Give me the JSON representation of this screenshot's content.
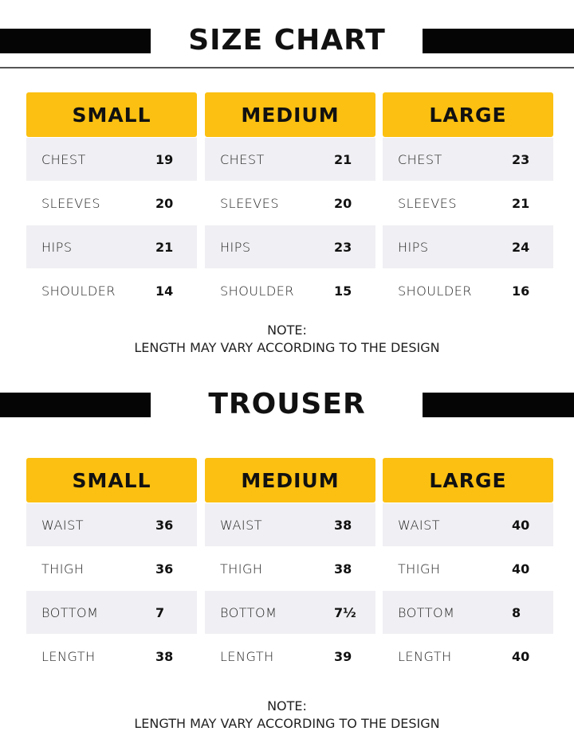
{
  "shirt": {
    "title": "SIZE CHART",
    "sizes": [
      {
        "name": "SMALL",
        "rows": [
          {
            "label": "CHEST",
            "value": "19"
          },
          {
            "label": "SLEEVES",
            "value": "20"
          },
          {
            "label": "HIPS",
            "value": "21"
          },
          {
            "label": "SHOULDER",
            "value": "14"
          }
        ]
      },
      {
        "name": "MEDIUM",
        "rows": [
          {
            "label": "CHEST",
            "value": "21"
          },
          {
            "label": "SLEEVES",
            "value": "20"
          },
          {
            "label": "HIPS",
            "value": "23"
          },
          {
            "label": "SHOULDER",
            "value": "15"
          }
        ]
      },
      {
        "name": "LARGE",
        "rows": [
          {
            "label": "CHEST",
            "value": "23"
          },
          {
            "label": "SLEEVES",
            "value": "21"
          },
          {
            "label": "HIPS",
            "value": "24"
          },
          {
            "label": "SHOULDER",
            "value": "16"
          }
        ]
      }
    ],
    "note_title": "NOTE:",
    "note_text": "LENGTH MAY VARY ACCORDING TO THE DESIGN"
  },
  "trouser": {
    "title": "TROUSER",
    "sizes": [
      {
        "name": "SMALL",
        "rows": [
          {
            "label": "WAIST",
            "value": "36"
          },
          {
            "label": "THIGH",
            "value": "36"
          },
          {
            "label": "BOTTOM",
            "value": "7"
          },
          {
            "label": "LENGTH",
            "value": "38"
          }
        ]
      },
      {
        "name": "MEDIUM",
        "rows": [
          {
            "label": "WAIST",
            "value": "38"
          },
          {
            "label": "THIGH",
            "value": "38"
          },
          {
            "label": "BOTTOM",
            "value": "7½"
          },
          {
            "label": "LENGTH",
            "value": "39"
          }
        ]
      },
      {
        "name": "LARGE",
        "rows": [
          {
            "label": "WAIST",
            "value": "40"
          },
          {
            "label": "THIGH",
            "value": "40"
          },
          {
            "label": "BOTTOM",
            "value": "8"
          },
          {
            "label": "LENGTH",
            "value": "40"
          }
        ]
      }
    ],
    "note_title": "NOTE:",
    "note_text": "LENGTH MAY VARY ACCORDING TO THE DESIGN"
  },
  "colors": {
    "header": "#fbc011",
    "bar": "#050505",
    "shaded_row": "#f0f0f4"
  }
}
